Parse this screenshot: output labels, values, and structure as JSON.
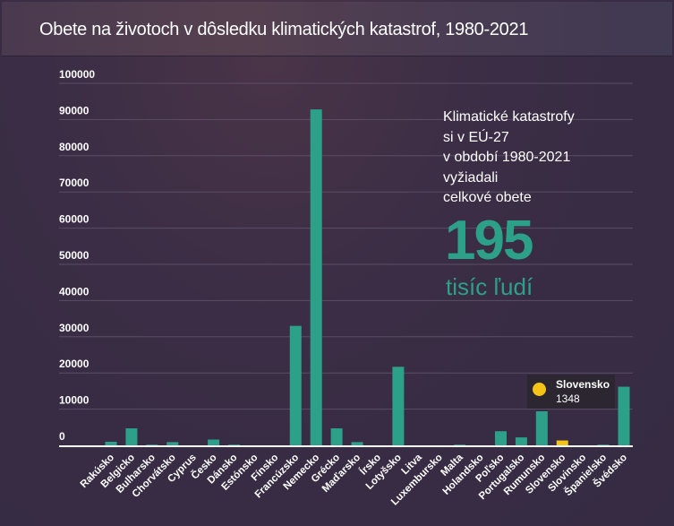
{
  "header": {
    "title": "Obete na životoch v dôsledku klimatických katastrof, 1980-2021"
  },
  "annotation": {
    "lines": [
      "Klimatické katastrofy",
      "si v EÚ-27",
      "v období 1980-2021",
      "vyžiadali",
      "celkové obete"
    ],
    "big_number": "195",
    "unit": "tisíc ľudí"
  },
  "tooltip": {
    "name": "Slovensko",
    "value": "1348"
  },
  "colors": {
    "bar": "#2da08a",
    "highlight": "#f6c416",
    "grid": "#5a4e66",
    "axis": "#ffffff"
  },
  "chart_data": {
    "type": "bar",
    "title": "Obete na životoch v dôsledku klimatických katastrof, 1980-2021",
    "xlabel": "",
    "ylabel": "",
    "ylim": [
      0,
      100000
    ],
    "yticks": [
      0,
      10000,
      20000,
      30000,
      40000,
      50000,
      60000,
      70000,
      80000,
      90000,
      100000
    ],
    "ytick_labels": [
      "0",
      "10000",
      "20000",
      "30000",
      "40000",
      "50000",
      "60000",
      "70000",
      "80000",
      "90000",
      "100000"
    ],
    "grid": true,
    "legend": "none",
    "highlight": "Slovensko",
    "categories": [
      "Rakúsko",
      "Belgicko",
      "Bulharsko",
      "Chorvátsko",
      "Cyprus",
      "Česko",
      "Dánsko",
      "Estónsko",
      "Fínsko",
      "Francúzsko",
      "Nemecko",
      "Grécko",
      "Maďarsko",
      "Írsko",
      "Lotyšsko",
      "Litva",
      "Luxembursko",
      "Malta",
      "Holandsko",
      "Poľsko",
      "Portugalsko",
      "Rumunsko",
      "Slovensko",
      "Slovinsko",
      "Španielsko",
      "Švédsko"
    ],
    "values": [
      1000,
      4700,
      200,
      900,
      0,
      1600,
      200,
      0,
      0,
      33000,
      92800,
      4700,
      900,
      0,
      21700,
      0,
      0,
      200,
      0,
      3900,
      2200,
      9400,
      1348,
      0,
      200,
      16200
    ]
  }
}
